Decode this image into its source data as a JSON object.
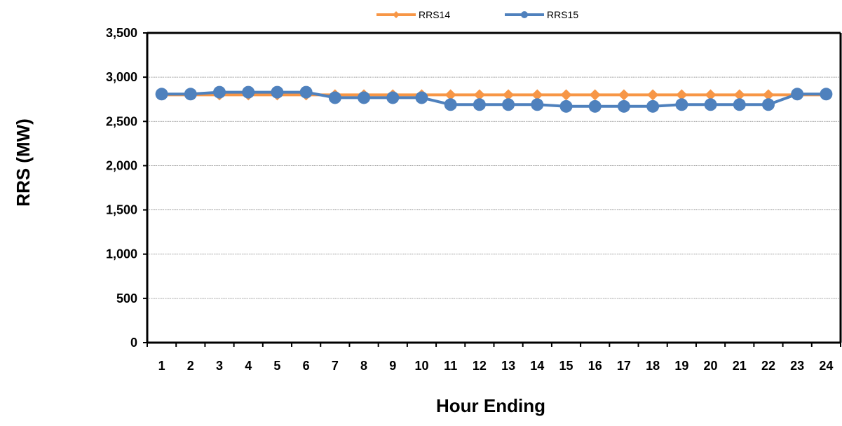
{
  "chart_data": {
    "type": "line",
    "title": "",
    "xlabel": "Hour Ending",
    "ylabel": "RRS (MW)",
    "categories": [
      "1",
      "2",
      "3",
      "4",
      "5",
      "6",
      "7",
      "8",
      "9",
      "10",
      "11",
      "12",
      "13",
      "14",
      "15",
      "16",
      "17",
      "18",
      "19",
      "20",
      "21",
      "22",
      "23",
      "24"
    ],
    "ylim": [
      0,
      3500
    ],
    "yticks": [
      0,
      500,
      1000,
      1500,
      2000,
      2500,
      3000,
      3500
    ],
    "ytick_labels": [
      "0",
      "500",
      "1,000",
      "1,500",
      "2,000",
      "2,500",
      "3,000",
      "3,500"
    ],
    "grid": "horizontal",
    "legend_position": "top",
    "series": [
      {
        "name": "RRS14",
        "color": "#F79646",
        "marker": "diamond",
        "values": [
          2800,
          2800,
          2800,
          2800,
          2800,
          2800,
          2800,
          2800,
          2800,
          2800,
          2800,
          2800,
          2800,
          2800,
          2800,
          2800,
          2800,
          2800,
          2800,
          2800,
          2800,
          2800,
          2800,
          2800
        ]
      },
      {
        "name": "RRS15",
        "color": "#4F81BD",
        "marker": "circle",
        "values": [
          2809,
          2809,
          2830,
          2830,
          2830,
          2830,
          2768,
          2768,
          2768,
          2768,
          2690,
          2690,
          2690,
          2690,
          2670,
          2670,
          2670,
          2670,
          2690,
          2690,
          2690,
          2690,
          2809,
          2809
        ]
      }
    ]
  }
}
